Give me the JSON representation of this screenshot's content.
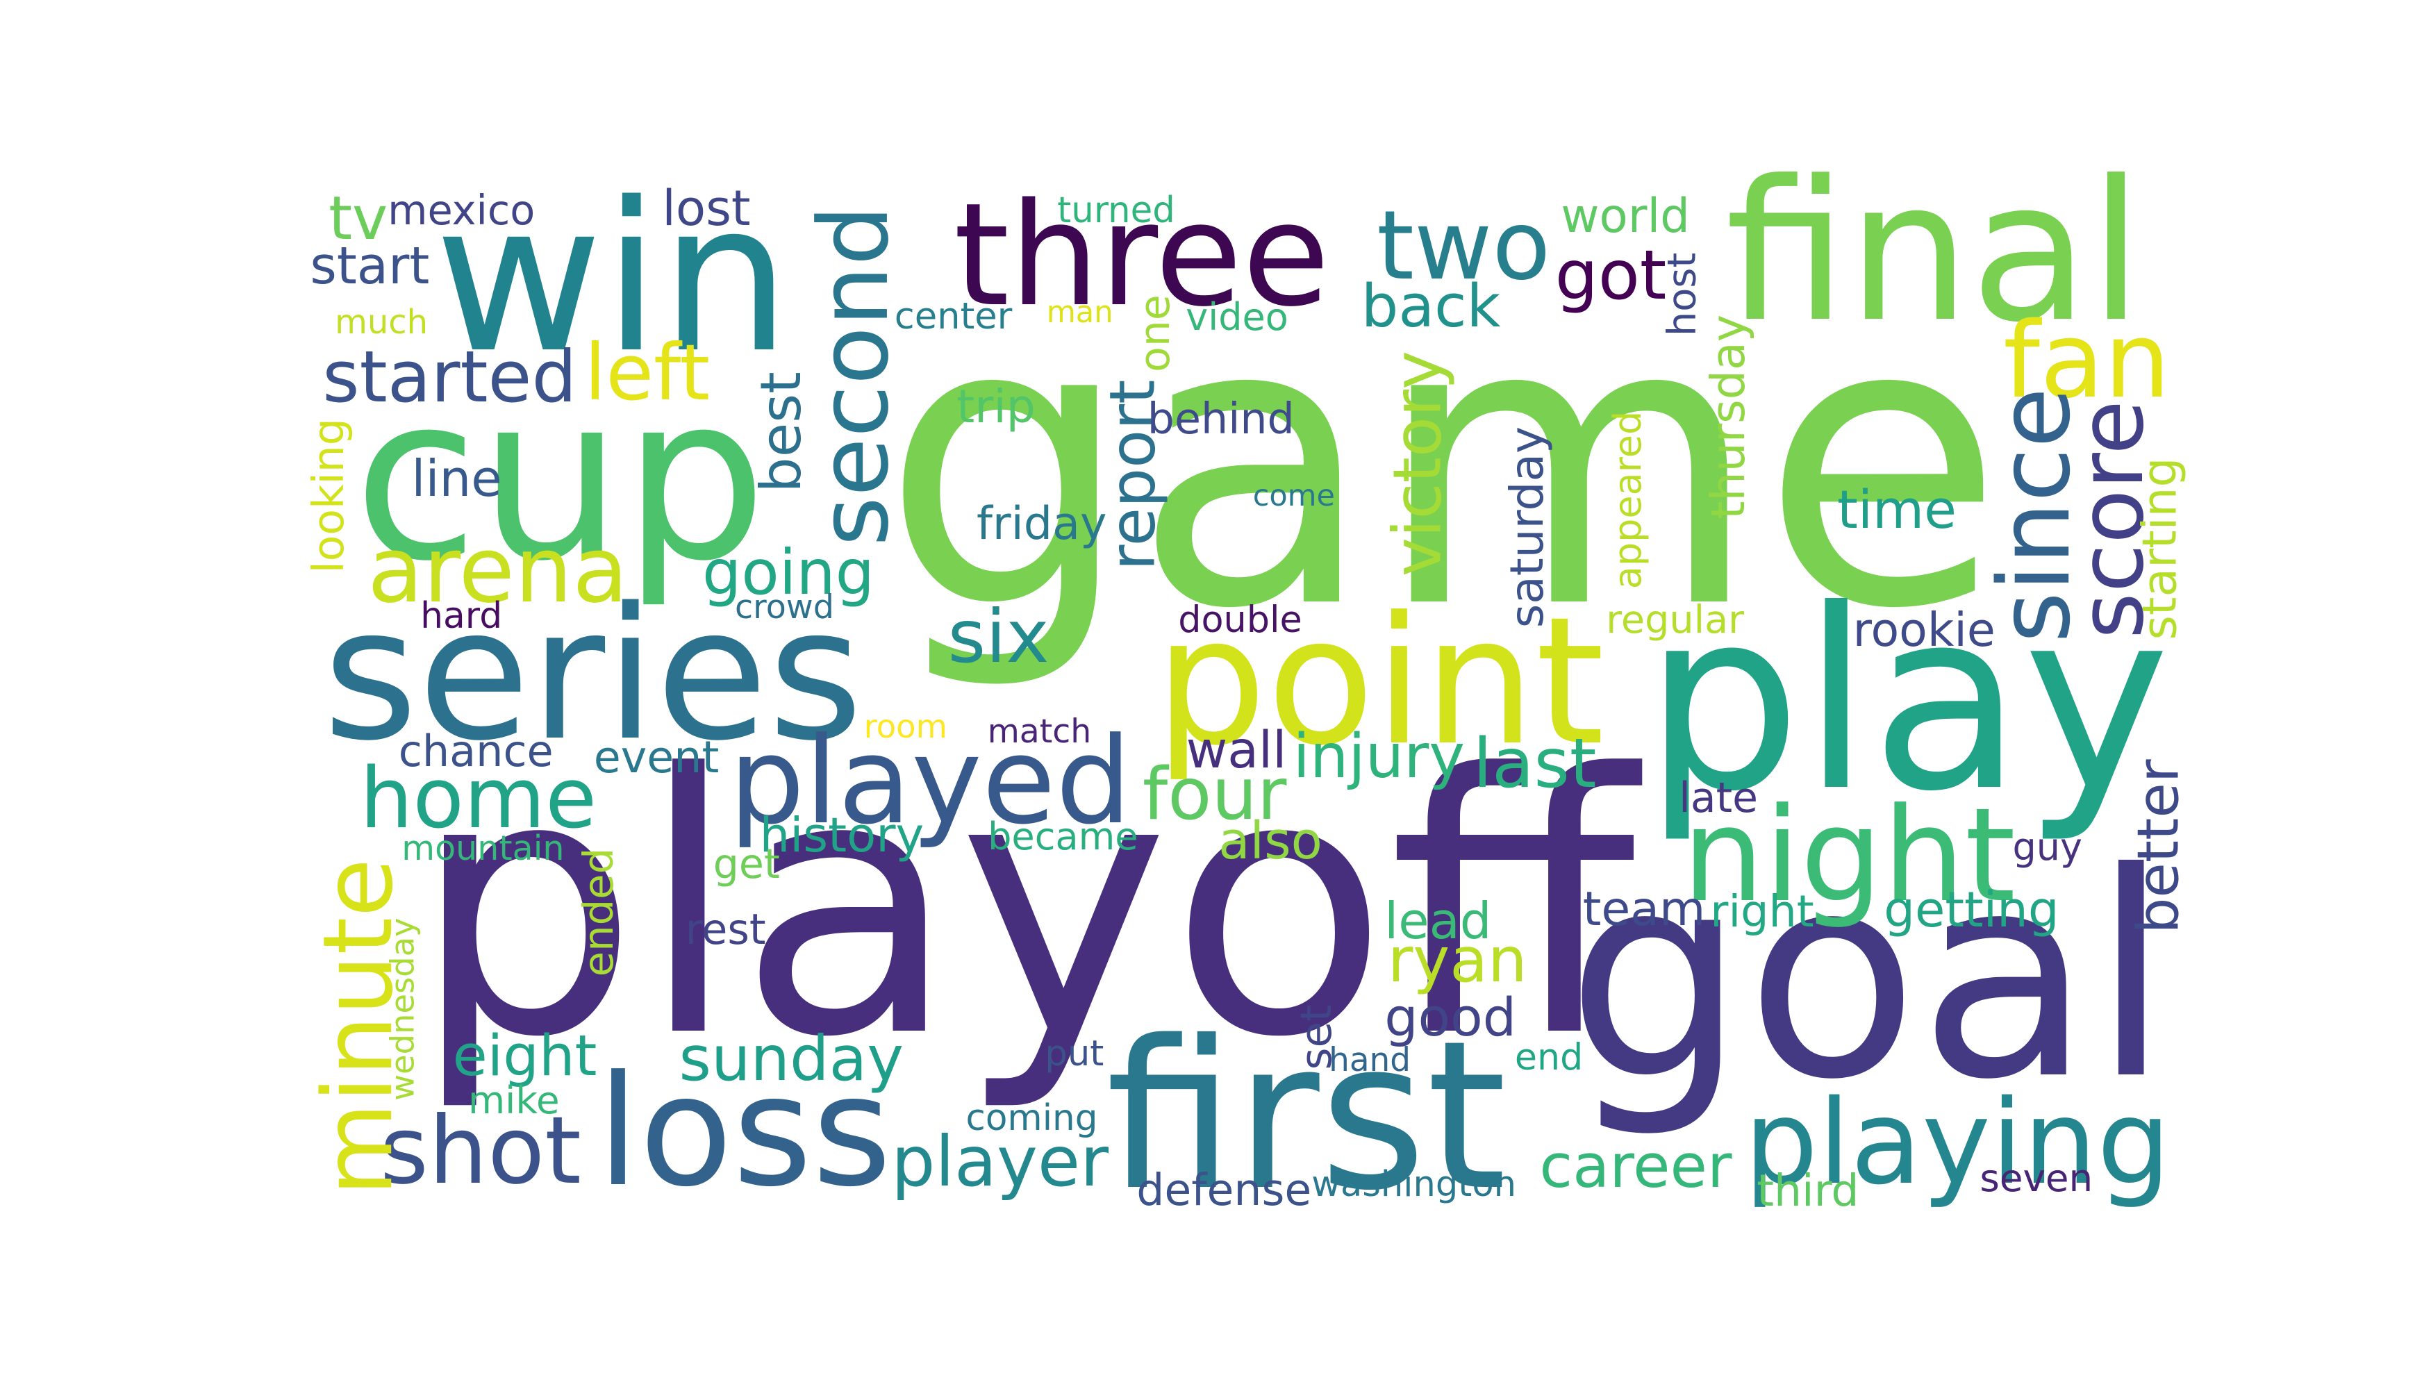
{
  "words": [
    {
      "text": "game",
      "color": "#7ad151"
    },
    {
      "text": "playoff",
      "color": "#472f7d"
    },
    {
      "text": "win",
      "color": "#21838e"
    },
    {
      "text": "cup",
      "color": "#4cc26c"
    },
    {
      "text": "goal",
      "color": "#443983"
    },
    {
      "text": "play",
      "color": "#20a386"
    },
    {
      "text": "series",
      "color": "#2c728e"
    },
    {
      "text": "point",
      "color": "#d2e21b"
    },
    {
      "text": "final",
      "color": "#7ad151"
    },
    {
      "text": "three",
      "color": "#3e0751"
    },
    {
      "text": "first",
      "color": "#2a788e"
    },
    {
      "text": "loss",
      "color": "#33638d"
    },
    {
      "text": "played",
      "color": "#38598c"
    },
    {
      "text": "night",
      "color": "#3bbb75"
    },
    {
      "text": "playing",
      "color": "#24868e"
    },
    {
      "text": "second",
      "color": "#2a768e"
    },
    {
      "text": "home",
      "color": "#20a386"
    },
    {
      "text": "two",
      "color": "#277f8e"
    },
    {
      "text": "shot",
      "color": "#3b528b"
    },
    {
      "text": "fan",
      "color": "#e5e419"
    },
    {
      "text": "since",
      "color": "#33638d"
    },
    {
      "text": "score",
      "color": "#424086"
    },
    {
      "text": "minute",
      "color": "#d8e219"
    },
    {
      "text": "arena",
      "color": "#c8e020"
    },
    {
      "text": "player",
      "color": "#23898e"
    },
    {
      "text": "four",
      "color": "#5ec962"
    },
    {
      "text": "sunday",
      "color": "#1f9e89"
    },
    {
      "text": "started",
      "color": "#3b528b"
    },
    {
      "text": "back",
      "color": "#21918c"
    },
    {
      "text": "got",
      "color": "#440154"
    },
    {
      "text": "left",
      "color": "#e5e419"
    },
    {
      "text": "going",
      "color": "#22a785"
    },
    {
      "text": "six",
      "color": "#238a8d"
    },
    {
      "text": "victory",
      "color": "#a5db36"
    },
    {
      "text": "report",
      "color": "#2c728e"
    },
    {
      "text": "best",
      "color": "#2d708e"
    },
    {
      "text": "mexico",
      "color": "#414487"
    },
    {
      "text": "tv",
      "color": "#6ccd5a"
    },
    {
      "text": "lost",
      "color": "#3f4788"
    },
    {
      "text": "turned",
      "color": "#2fb47c"
    },
    {
      "text": "world",
      "color": "#5ec962"
    },
    {
      "text": "start",
      "color": "#3b528b"
    },
    {
      "text": "much",
      "color": "#c2df23"
    },
    {
      "text": "center",
      "color": "#277f8e"
    },
    {
      "text": "man",
      "color": "#dde318"
    },
    {
      "text": "video",
      "color": "#35b779"
    },
    {
      "text": "one",
      "color": "#a0da39"
    },
    {
      "text": "host",
      "color": "#3e4989"
    },
    {
      "text": "behind",
      "color": "#3e4a89"
    },
    {
      "text": "trip",
      "color": "#52c569"
    },
    {
      "text": "line",
      "color": "#38598c"
    },
    {
      "text": "looking",
      "color": "#d2e21b"
    },
    {
      "text": "friday",
      "color": "#2a788e"
    },
    {
      "text": "come",
      "color": "#2a788e"
    },
    {
      "text": "saturday",
      "color": "#3b528b"
    },
    {
      "text": "thursday",
      "color": "#90d743"
    },
    {
      "text": "appeared",
      "color": "#bade28"
    },
    {
      "text": "starting",
      "color": "#b5de2b"
    },
    {
      "text": "time",
      "color": "#1f9e89"
    },
    {
      "text": "regular",
      "color": "#b5de2b"
    },
    {
      "text": "rookie",
      "color": "#3e4a89"
    },
    {
      "text": "hard",
      "color": "#470d60"
    },
    {
      "text": "crowd",
      "color": "#2d708e"
    },
    {
      "text": "double",
      "color": "#471365"
    },
    {
      "text": "room",
      "color": "#fde725"
    },
    {
      "text": "match",
      "color": "#482576"
    },
    {
      "text": "chance",
      "color": "#3b528b"
    },
    {
      "text": "event",
      "color": "#2a788e"
    },
    {
      "text": "wall",
      "color": "#46307e"
    },
    {
      "text": "injury",
      "color": "#2eb37c"
    },
    {
      "text": "last",
      "color": "#29af7f"
    },
    {
      "text": "late",
      "color": "#453781"
    },
    {
      "text": "better",
      "color": "#3e4989"
    },
    {
      "text": "mountain",
      "color": "#35b779"
    },
    {
      "text": "history",
      "color": "#20a386"
    },
    {
      "text": "became",
      "color": "#29af7f"
    },
    {
      "text": "also",
      "color": "#90d743"
    },
    {
      "text": "get",
      "color": "#6ece58"
    },
    {
      "text": "ended",
      "color": "#a8db34"
    },
    {
      "text": "rest",
      "color": "#414487"
    },
    {
      "text": "wednesday",
      "color": "#a8db34"
    },
    {
      "text": "lead",
      "color": "#3aba76"
    },
    {
      "text": "ryan",
      "color": "#bade28"
    },
    {
      "text": "team",
      "color": "#3e4a89"
    },
    {
      "text": "right",
      "color": "#22a884"
    },
    {
      "text": "getting",
      "color": "#21a585"
    },
    {
      "text": "guy",
      "color": "#46327e"
    },
    {
      "text": "good",
      "color": "#414487"
    },
    {
      "text": "eight",
      "color": "#20a386"
    },
    {
      "text": "set",
      "color": "#404588"
    },
    {
      "text": "hand",
      "color": "#32658e"
    },
    {
      "text": "put",
      "color": "#3b528b"
    },
    {
      "text": "end",
      "color": "#21a685"
    },
    {
      "text": "mike",
      "color": "#35b779"
    },
    {
      "text": "coming",
      "color": "#2a788e"
    },
    {
      "text": "career",
      "color": "#35b779"
    },
    {
      "text": "defense",
      "color": "#3b528b"
    },
    {
      "text": "washington",
      "color": "#2a788e"
    },
    {
      "text": "third",
      "color": "#5ec962"
    },
    {
      "text": "seven",
      "color": "#482475"
    }
  ]
}
